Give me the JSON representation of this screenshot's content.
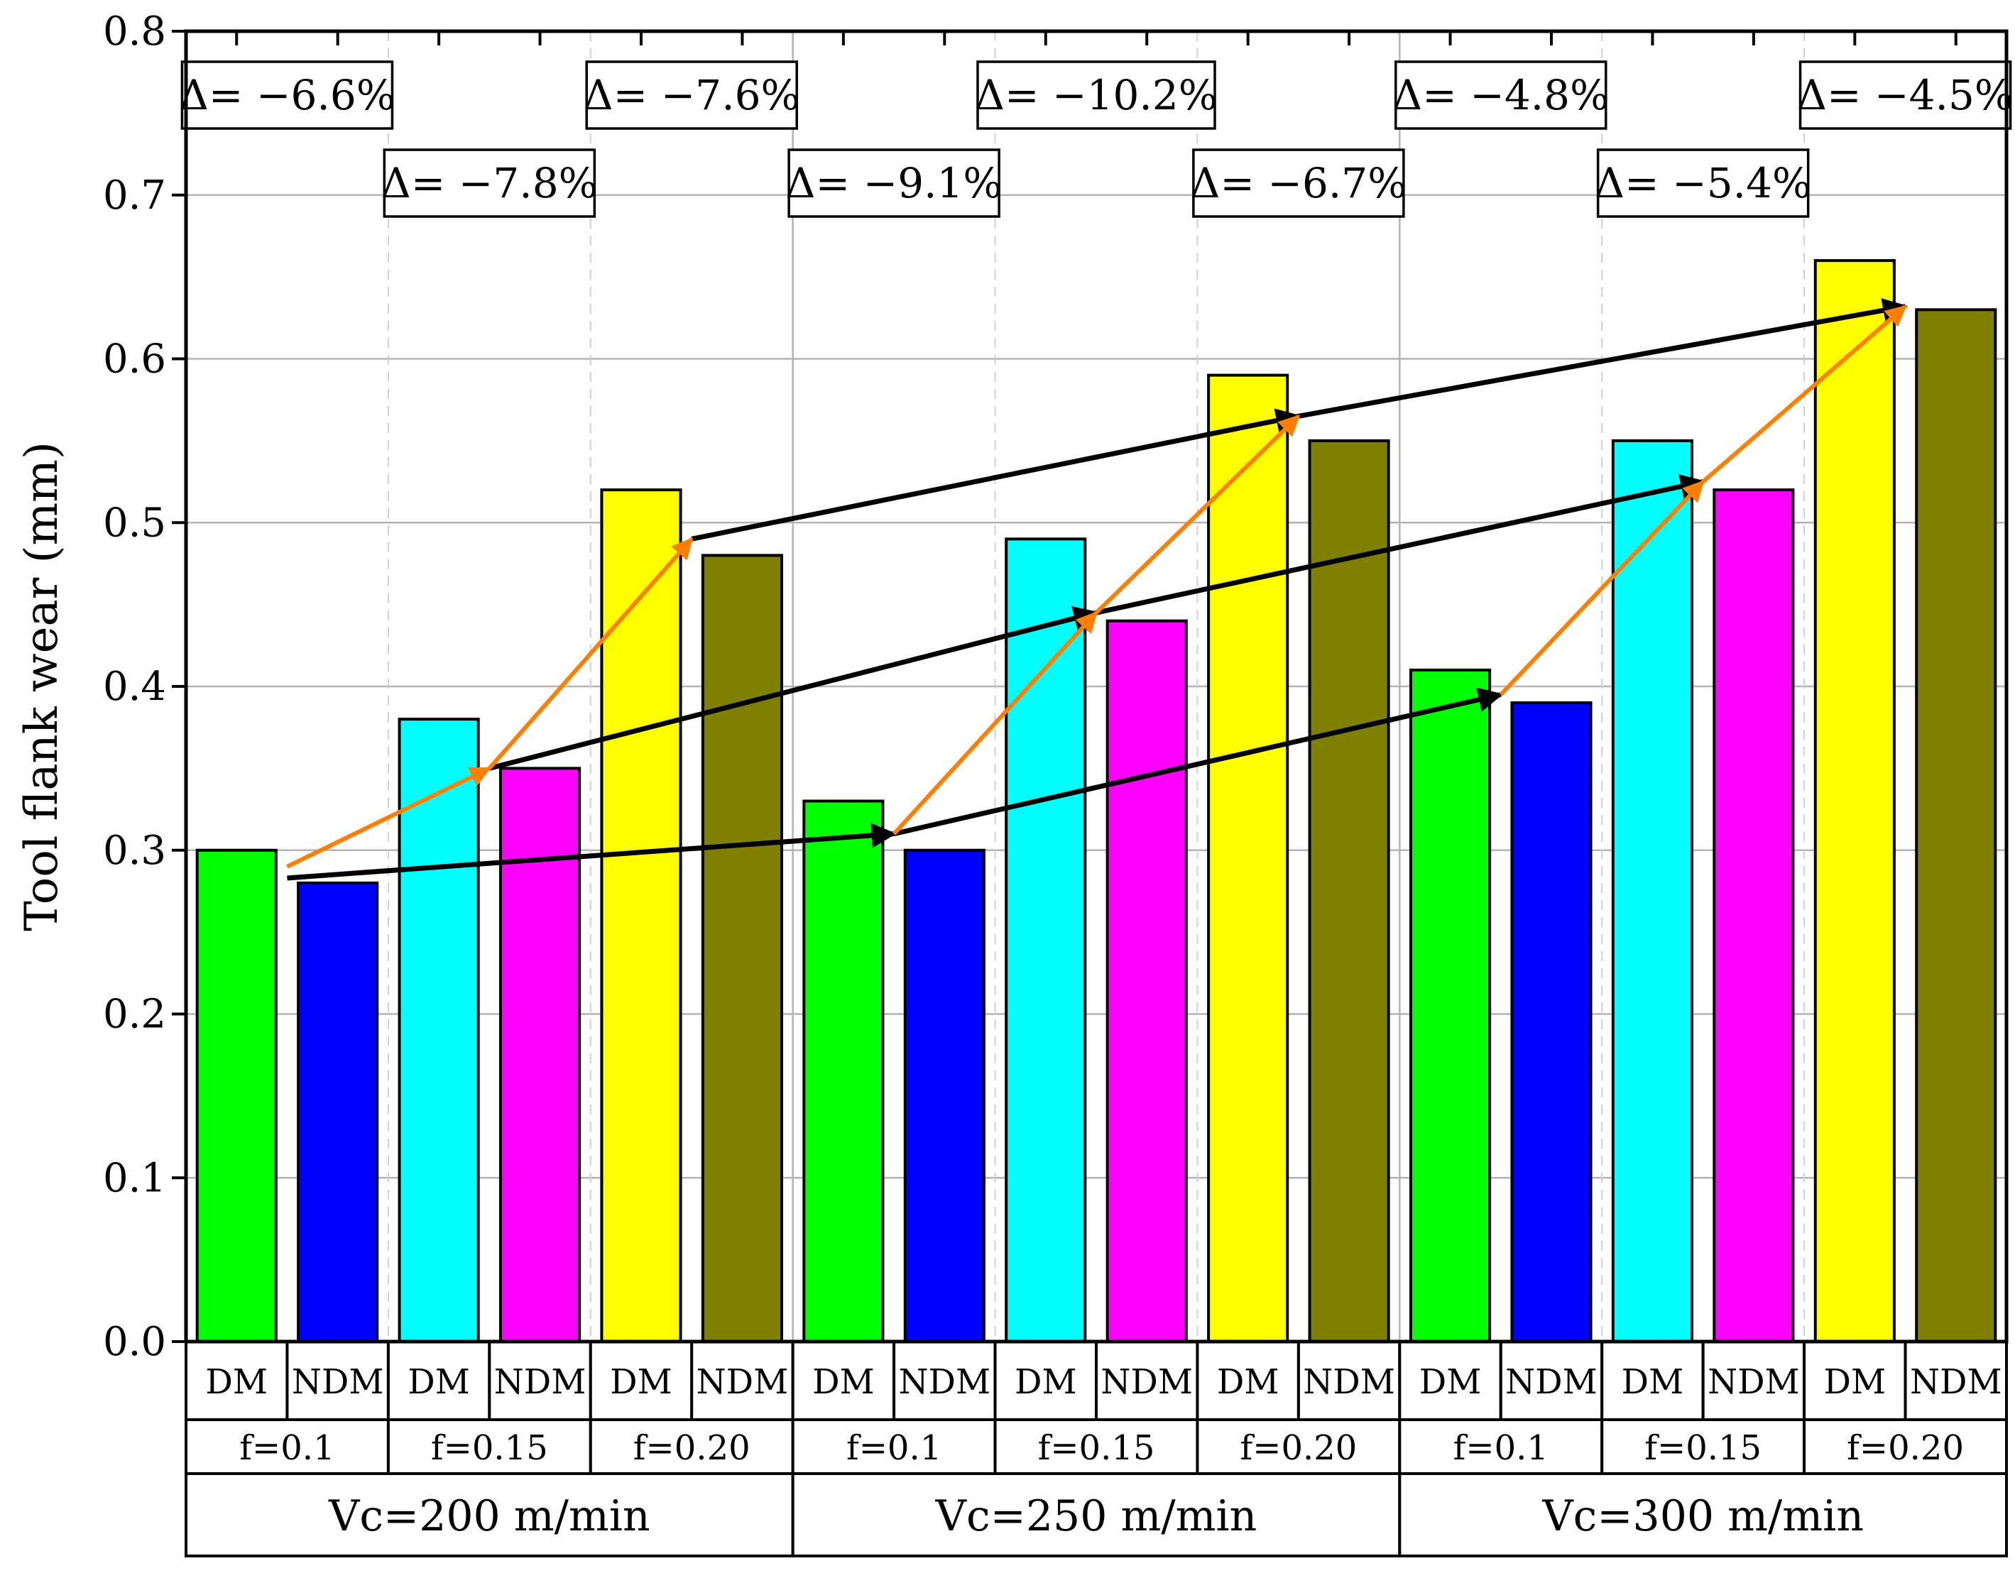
{
  "chart_data": {
    "type": "bar",
    "title": "",
    "ylabel": "Tool flank wear (mm)",
    "xlabel": "",
    "ylim": [
      0,
      0.8
    ],
    "yticks": [
      "0.0",
      "0.1",
      "0.2",
      "0.3",
      "0.4",
      "0.5",
      "0.6",
      "0.7",
      "0.8"
    ],
    "grid": true,
    "bars": [
      {
        "method": "DM",
        "feed": "f=0.1",
        "speed": "Vc=200 m/min",
        "value": 0.3,
        "color": "#00ff00"
      },
      {
        "method": "NDM",
        "feed": "f=0.1",
        "speed": "Vc=200 m/min",
        "value": 0.28,
        "color": "#0000ff"
      },
      {
        "method": "DM",
        "feed": "f=0.15",
        "speed": "Vc=200 m/min",
        "value": 0.38,
        "color": "#00ffff"
      },
      {
        "method": "NDM",
        "feed": "f=0.15",
        "speed": "Vc=200 m/min",
        "value": 0.35,
        "color": "#ff00ff"
      },
      {
        "method": "DM",
        "feed": "f=0.20",
        "speed": "Vc=200 m/min",
        "value": 0.52,
        "color": "#ffff00"
      },
      {
        "method": "NDM",
        "feed": "f=0.20",
        "speed": "Vc=200 m/min",
        "value": 0.48,
        "color": "#808000"
      },
      {
        "method": "DM",
        "feed": "f=0.1",
        "speed": "Vc=250 m/min",
        "value": 0.33,
        "color": "#00ff00"
      },
      {
        "method": "NDM",
        "feed": "f=0.1",
        "speed": "Vc=250 m/min",
        "value": 0.3,
        "color": "#0000ff"
      },
      {
        "method": "DM",
        "feed": "f=0.15",
        "speed": "Vc=250 m/min",
        "value": 0.49,
        "color": "#00ffff"
      },
      {
        "method": "NDM",
        "feed": "f=0.15",
        "speed": "Vc=250 m/min",
        "value": 0.44,
        "color": "#ff00ff"
      },
      {
        "method": "DM",
        "feed": "f=0.20",
        "speed": "Vc=250 m/min",
        "value": 0.59,
        "color": "#ffff00"
      },
      {
        "method": "NDM",
        "feed": "f=0.20",
        "speed": "Vc=250 m/min",
        "value": 0.55,
        "color": "#808000"
      },
      {
        "method": "DM",
        "feed": "f=0.1",
        "speed": "Vc=300 m/min",
        "value": 0.41,
        "color": "#00ff00"
      },
      {
        "method": "NDM",
        "feed": "f=0.1",
        "speed": "Vc=300 m/min",
        "value": 0.39,
        "color": "#0000ff"
      },
      {
        "method": "DM",
        "feed": "f=0.15",
        "speed": "Vc=300 m/min",
        "value": 0.55,
        "color": "#00ffff"
      },
      {
        "method": "NDM",
        "feed": "f=0.15",
        "speed": "Vc=300 m/min",
        "value": 0.52,
        "color": "#ff00ff"
      },
      {
        "method": "DM",
        "feed": "f=0.20",
        "speed": "Vc=300 m/min",
        "value": 0.66,
        "color": "#ffff00"
      },
      {
        "method": "NDM",
        "feed": "f=0.20",
        "speed": "Vc=300 m/min",
        "value": 0.63,
        "color": "#808000"
      }
    ],
    "feed_groups": [
      "f=0.1",
      "f=0.15",
      "f=0.20",
      "f=0.1",
      "f=0.15",
      "f=0.20",
      "f=0.1",
      "f=0.15",
      "f=0.20"
    ],
    "speed_groups": [
      "Vc=200 m/min",
      "Vc=250 m/min",
      "Vc=300 m/min"
    ],
    "annotations": [
      {
        "text": "Δ= −6.6%",
        "feed_index": 0,
        "row": "upper"
      },
      {
        "text": "Δ= −7.8%",
        "feed_index": 1,
        "row": "lower"
      },
      {
        "text": "Δ= −7.6%",
        "feed_index": 2,
        "row": "upper"
      },
      {
        "text": "Δ= −9.1%",
        "feed_index": 3,
        "row": "lower"
      },
      {
        "text": "Δ= −10.2%",
        "feed_index": 4,
        "row": "upper"
      },
      {
        "text": "Δ= −6.7%",
        "feed_index": 5,
        "row": "lower"
      },
      {
        "text": "Δ= −4.8%",
        "feed_index": 6,
        "row": "upper"
      },
      {
        "text": "Δ= −5.4%",
        "feed_index": 7,
        "row": "lower"
      },
      {
        "text": "Δ= −4.5%",
        "feed_index": 8,
        "row": "upper"
      }
    ],
    "trend_arrows": [
      {
        "kind": "speed",
        "color": "#000000",
        "from": {
          "slot": 1,
          "value": 0.283
        },
        "to": {
          "slot": 7,
          "value": 0.31
        }
      },
      {
        "kind": "speed",
        "color": "#000000",
        "from": {
          "slot": 7,
          "value": 0.31
        },
        "to": {
          "slot": 13,
          "value": 0.395
        }
      },
      {
        "kind": "speed",
        "color": "#000000",
        "from": {
          "slot": 3,
          "value": 0.35
        },
        "to": {
          "slot": 9,
          "value": 0.445
        }
      },
      {
        "kind": "speed",
        "color": "#000000",
        "from": {
          "slot": 9,
          "value": 0.445
        },
        "to": {
          "slot": 15,
          "value": 0.525
        }
      },
      {
        "kind": "speed",
        "color": "#000000",
        "from": {
          "slot": 5,
          "value": 0.49
        },
        "to": {
          "slot": 11,
          "value": 0.565
        }
      },
      {
        "kind": "speed",
        "color": "#000000",
        "from": {
          "slot": 11,
          "value": 0.565
        },
        "to": {
          "slot": 17,
          "value": 0.632
        }
      },
      {
        "kind": "feed",
        "color": "#ff8000",
        "from": {
          "slot": 1,
          "value": 0.29
        },
        "to": {
          "slot": 3,
          "value": 0.35
        }
      },
      {
        "kind": "feed",
        "color": "#ff8000",
        "from": {
          "slot": 3,
          "value": 0.35
        },
        "to": {
          "slot": 5,
          "value": 0.49
        }
      },
      {
        "kind": "feed",
        "color": "#ff8000",
        "from": {
          "slot": 7,
          "value": 0.31
        },
        "to": {
          "slot": 9,
          "value": 0.445
        }
      },
      {
        "kind": "feed",
        "color": "#ff8000",
        "from": {
          "slot": 9,
          "value": 0.445
        },
        "to": {
          "slot": 11,
          "value": 0.565
        }
      },
      {
        "kind": "feed",
        "color": "#ff8000",
        "from": {
          "slot": 13,
          "value": 0.395
        },
        "to": {
          "slot": 15,
          "value": 0.525
        }
      },
      {
        "kind": "feed",
        "color": "#ff8000",
        "from": {
          "slot": 15,
          "value": 0.525
        },
        "to": {
          "slot": 17,
          "value": 0.632
        }
      }
    ]
  }
}
